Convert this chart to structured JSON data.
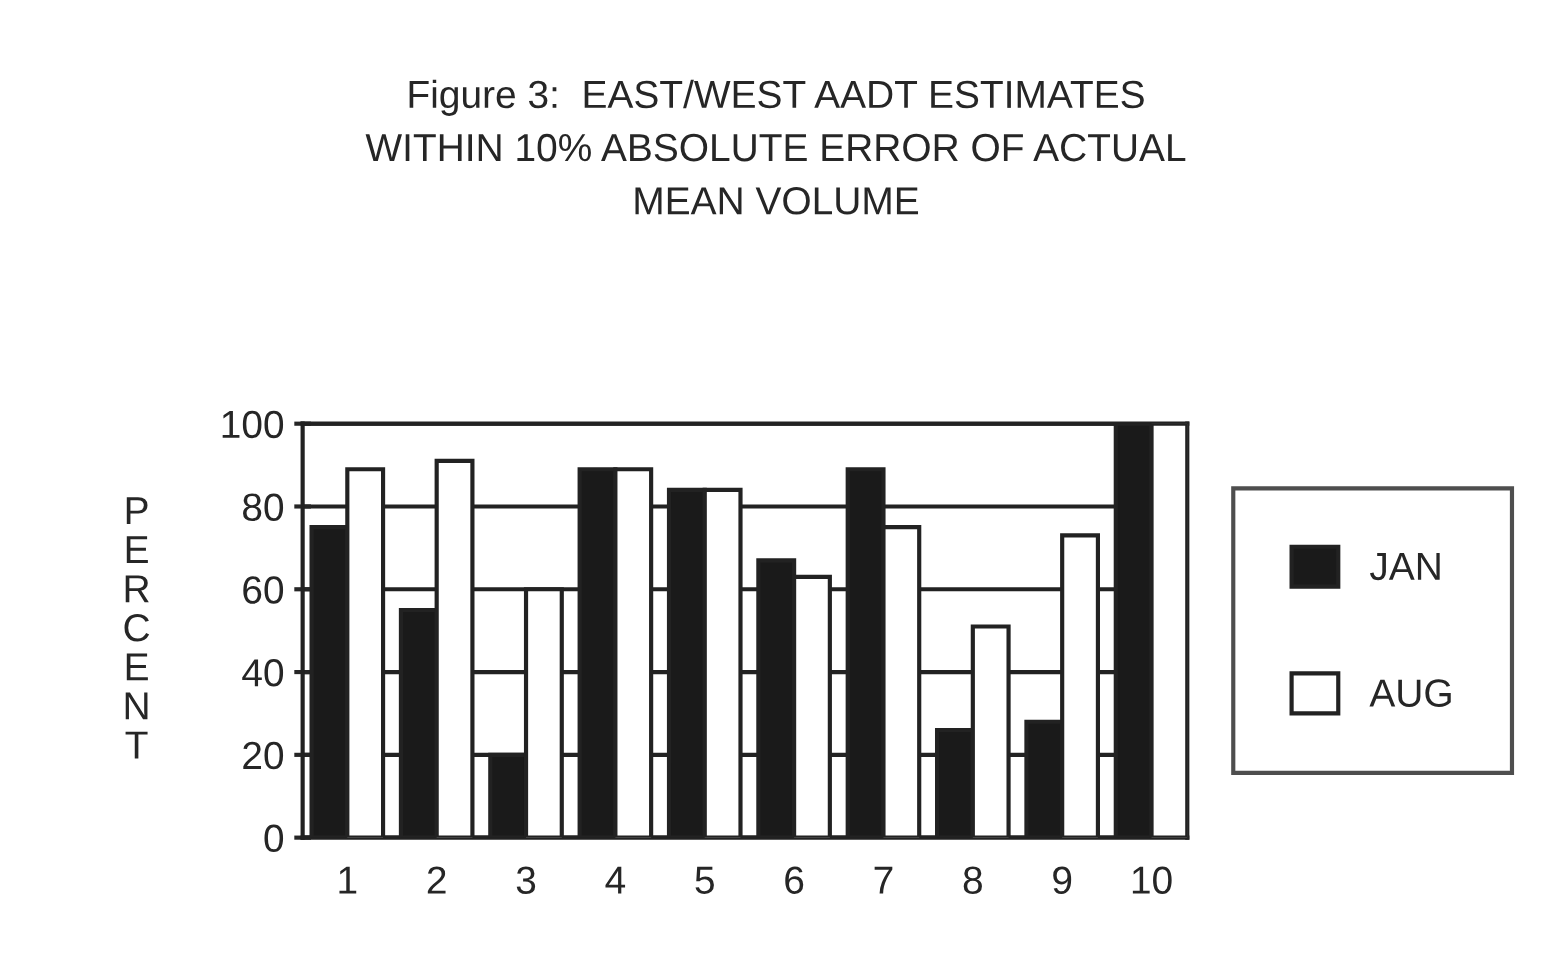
{
  "chart_data": {
    "type": "bar",
    "title": "Figure 3:  EAST/WEST AADT ESTIMATES\nWITHIN 10% ABSOLUTE ERROR OF ACTUAL\nMEAN VOLUME",
    "ylabel": "PERCENT",
    "categories": [
      "1",
      "2",
      "3",
      "4",
      "5",
      "6",
      "7",
      "8",
      "9",
      "10"
    ],
    "series": [
      {
        "name": "JAN",
        "color": "#1a1a1a",
        "values": [
          75,
          55,
          20,
          89,
          84,
          67,
          89,
          26,
          28,
          100
        ]
      },
      {
        "name": "AUG",
        "color": "#ffffff",
        "values": [
          89,
          91,
          60,
          89,
          84,
          63,
          75,
          51,
          73,
          100
        ]
      }
    ],
    "ylim": [
      0,
      100
    ],
    "yticks": [
      0,
      20,
      40,
      60,
      80,
      100
    ],
    "grid": "y",
    "legend": "right"
  }
}
